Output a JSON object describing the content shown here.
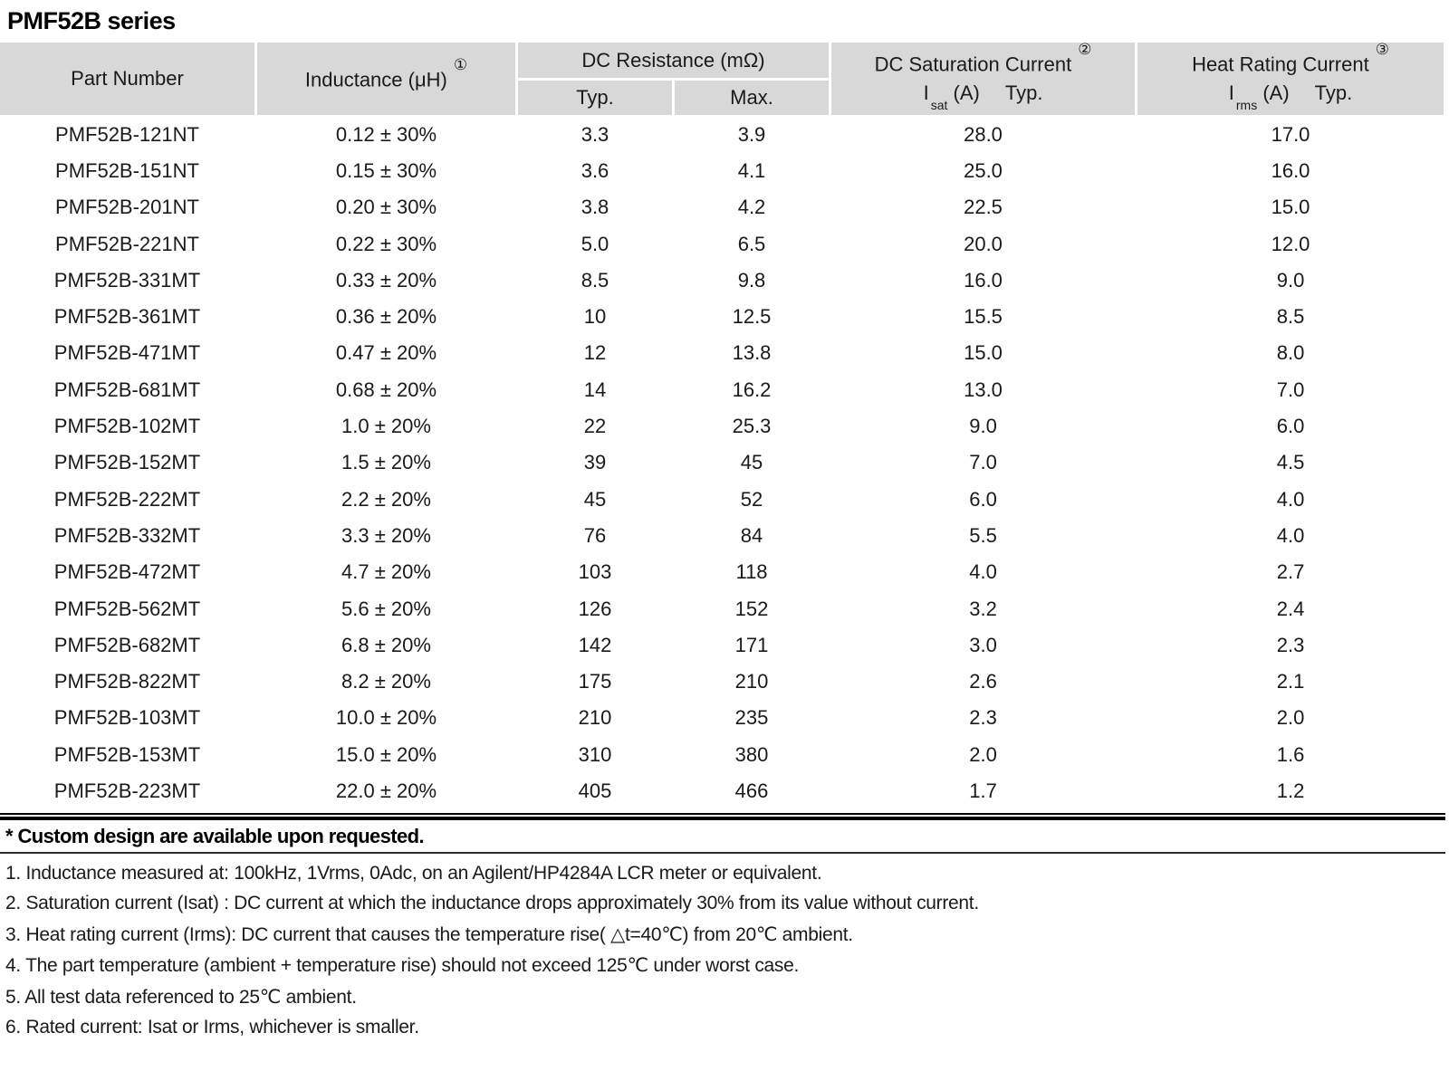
{
  "page": {
    "title": "PMF52B series"
  },
  "colors": {
    "header_bg": "#d8d8d8",
    "text": "#1a1a1a",
    "rule": "#000000"
  },
  "table": {
    "headers": {
      "part_number": "Part Number",
      "inductance": "Inductance (μH)",
      "inductance_note": "①",
      "dc_resistance": "DC Resistance (mΩ)",
      "dc_resistance_typ": "Typ.",
      "dc_resistance_max": "Max.",
      "dc_saturation": "DC Saturation Current",
      "dc_saturation_note": "②",
      "dc_saturation_sub": {
        "symbol": "I",
        "subscript": "sat",
        "unit": "(A)",
        "typ": "Typ."
      },
      "heat_rating": "Heat Rating Current",
      "heat_rating_note": "③",
      "heat_rating_sub": {
        "symbol": "I",
        "subscript": "rms",
        "unit": "(A)",
        "typ": "Typ."
      }
    },
    "rows": [
      {
        "part": "PMF52B-121NT",
        "inductance": "0.12 ± 30%",
        "typ": "3.3",
        "max": "3.9",
        "isat": "28.0",
        "irms": "17.0"
      },
      {
        "part": "PMF52B-151NT",
        "inductance": "0.15 ± 30%",
        "typ": "3.6",
        "max": "4.1",
        "isat": "25.0",
        "irms": "16.0"
      },
      {
        "part": "PMF52B-201NT",
        "inductance": "0.20 ± 30%",
        "typ": "3.8",
        "max": "4.2",
        "isat": "22.5",
        "irms": "15.0"
      },
      {
        "part": "PMF52B-221NT",
        "inductance": "0.22 ± 30%",
        "typ": "5.0",
        "max": "6.5",
        "isat": "20.0",
        "irms": "12.0"
      },
      {
        "part": "PMF52B-331MT",
        "inductance": "0.33 ± 20%",
        "typ": "8.5",
        "max": "9.8",
        "isat": "16.0",
        "irms": "9.0"
      },
      {
        "part": "PMF52B-361MT",
        "inductance": "0.36 ± 20%",
        "typ": "10",
        "max": "12.5",
        "isat": "15.5",
        "irms": "8.5"
      },
      {
        "part": "PMF52B-471MT",
        "inductance": "0.47 ± 20%",
        "typ": "12",
        "max": "13.8",
        "isat": "15.0",
        "irms": "8.0"
      },
      {
        "part": "PMF52B-681MT",
        "inductance": "0.68 ± 20%",
        "typ": "14",
        "max": "16.2",
        "isat": "13.0",
        "irms": "7.0"
      },
      {
        "part": "PMF52B-102MT",
        "inductance": "1.0 ± 20%",
        "typ": "22",
        "max": "25.3",
        "isat": "9.0",
        "irms": "6.0"
      },
      {
        "part": "PMF52B-152MT",
        "inductance": "1.5 ± 20%",
        "typ": "39",
        "max": "45",
        "isat": "7.0",
        "irms": "4.5"
      },
      {
        "part": "PMF52B-222MT",
        "inductance": "2.2 ± 20%",
        "typ": "45",
        "max": "52",
        "isat": "6.0",
        "irms": "4.0"
      },
      {
        "part": "PMF52B-332MT",
        "inductance": "3.3 ± 20%",
        "typ": "76",
        "max": "84",
        "isat": "5.5",
        "irms": "4.0"
      },
      {
        "part": "PMF52B-472MT",
        "inductance": "4.7 ± 20%",
        "typ": "103",
        "max": "118",
        "isat": "4.0",
        "irms": "2.7"
      },
      {
        "part": "PMF52B-562MT",
        "inductance": "5.6 ± 20%",
        "typ": "126",
        "max": "152",
        "isat": "3.2",
        "irms": "2.4"
      },
      {
        "part": "PMF52B-682MT",
        "inductance": "6.8 ± 20%",
        "typ": "142",
        "max": "171",
        "isat": "3.0",
        "irms": "2.3"
      },
      {
        "part": "PMF52B-822MT",
        "inductance": "8.2 ± 20%",
        "typ": "175",
        "max": "210",
        "isat": "2.6",
        "irms": "2.1"
      },
      {
        "part": "PMF52B-103MT",
        "inductance": "10.0 ± 20%",
        "typ": "210",
        "max": "235",
        "isat": "2.3",
        "irms": "2.0"
      },
      {
        "part": "PMF52B-153MT",
        "inductance": "15.0 ± 20%",
        "typ": "310",
        "max": "380",
        "isat": "2.0",
        "irms": "1.6"
      },
      {
        "part": "PMF52B-223MT",
        "inductance": "22.0 ± 20%",
        "typ": "405",
        "max": "466",
        "isat": "1.7",
        "irms": "1.2"
      }
    ]
  },
  "footer": {
    "custom_note": "* Custom design are available upon requested.",
    "notes": [
      "1. Inductance measured at: 100kHz, 1Vrms, 0Adc, on an Agilent/HP4284A LCR meter or equivalent.",
      "2. Saturation current (Isat) : DC current at which the inductance drops approximately 30% from its value without current.",
      "3. Heat rating current (Irms): DC current that causes the temperature rise( △t=40℃) from 20℃ ambient.",
      "4. The part temperature (ambient + temperature rise) should not exceed 125℃ under worst case.",
      "5. All test data referenced to 25℃ ambient.",
      "6. Rated current: Isat or Irms, whichever is smaller."
    ]
  }
}
